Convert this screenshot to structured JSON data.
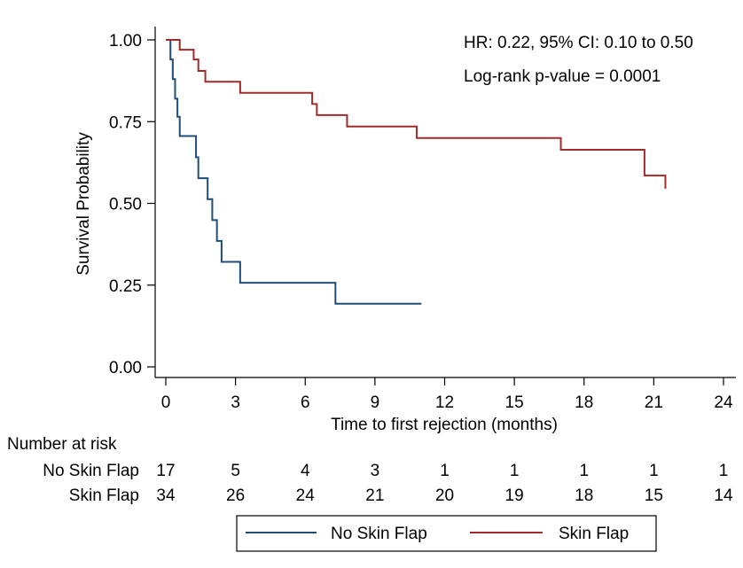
{
  "chart_data": {
    "type": "line",
    "step": true,
    "xlabel": "Time to first rejection (months)",
    "ylabel": "Survival Probability",
    "xlim": [
      0,
      24
    ],
    "ylim": [
      0,
      1
    ],
    "xticks": [
      0,
      3,
      6,
      9,
      12,
      15,
      18,
      21,
      24
    ],
    "yticks": [
      0,
      0.25,
      0.5,
      0.75,
      1
    ],
    "ytick_labels": [
      "0.00",
      "0.25",
      "0.50",
      "0.75",
      "1.00"
    ],
    "grid": false,
    "annotations": [
      "HR: 0.22, 95% CI: 0.10 to 0.50",
      "Log-rank p-value = 0.0001"
    ],
    "series": [
      {
        "name": "No Skin Flap",
        "color": "#1f4e79",
        "x": [
          0,
          0.2,
          0.3,
          0.4,
          0.5,
          0.6,
          1.3,
          1.4,
          1.5,
          1.8,
          2.0,
          2.2,
          2.4,
          3.2,
          7.3,
          11.0
        ],
        "y": [
          1.0,
          0.94,
          0.88,
          0.82,
          0.765,
          0.706,
          0.641,
          0.577,
          0.577,
          0.513,
          0.449,
          0.385,
          0.321,
          0.257,
          0.193,
          0.193
        ]
      },
      {
        "name": "Skin Flap",
        "color": "#a02b2b",
        "x": [
          0,
          0.6,
          1.2,
          1.4,
          1.7,
          3.2,
          6.3,
          6.5,
          6.7,
          7.8,
          10.8,
          17.0,
          20.6,
          21.5
        ],
        "y": [
          1.0,
          0.97,
          0.94,
          0.905,
          0.872,
          0.838,
          0.804,
          0.77,
          0.77,
          0.735,
          0.7,
          0.664,
          0.585,
          0.545
        ]
      }
    ],
    "risk_table": {
      "title": "Number at risk",
      "times": [
        0,
        3,
        6,
        9,
        12,
        15,
        18,
        21,
        24
      ],
      "rows": [
        {
          "label": "No Skin Flap",
          "values": [
            "17",
            "5",
            "4",
            "3",
            "1",
            "1",
            "1",
            "1",
            "1"
          ]
        },
        {
          "label": "Skin Flap",
          "values": [
            "34",
            "26",
            "24",
            "21",
            "20",
            "19",
            "18",
            "15",
            "14"
          ]
        }
      ]
    },
    "legend": {
      "placement": "bottom",
      "entries": [
        "No Skin Flap",
        "Skin Flap"
      ]
    }
  }
}
